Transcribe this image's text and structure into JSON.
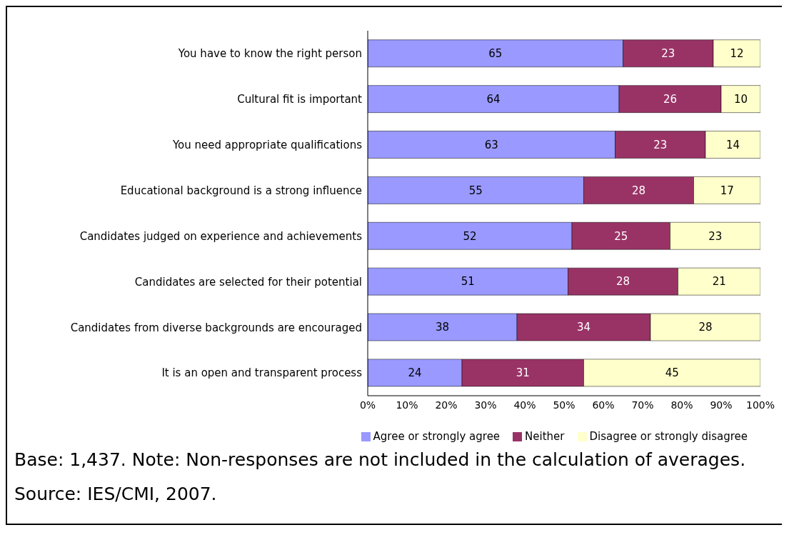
{
  "chart_data": {
    "type": "bar",
    "orientation": "horizontal",
    "stacked": true,
    "categories": [
      "You have to know the right person",
      "Cultural fit is important",
      "You need appropriate qualifications",
      "Educational background is a strong influence",
      "Candidates judged on experience and achievements",
      "Candidates are selected for their potential",
      "Candidates from diverse backgrounds are encouraged",
      "It is an open and transparent process"
    ],
    "series": [
      {
        "name": "Agree or strongly agree",
        "color": "#9999ff",
        "values": [
          65,
          64,
          63,
          55,
          52,
          51,
          38,
          24
        ]
      },
      {
        "name": "Neither",
        "color": "#993366",
        "values": [
          23,
          26,
          23,
          28,
          25,
          28,
          34,
          31
        ]
      },
      {
        "name": "Disagree or strongly disagree",
        "color": "#ffffcc",
        "values": [
          12,
          10,
          14,
          17,
          23,
          21,
          28,
          45
        ]
      }
    ],
    "xlim": [
      0,
      100
    ],
    "xticks": [
      {
        "value": 0,
        "label": "0%"
      },
      {
        "value": 10,
        "label": "10%"
      },
      {
        "value": 20,
        "label": "20%"
      },
      {
        "value": 30,
        "label": "30%"
      },
      {
        "value": 40,
        "label": "40%"
      },
      {
        "value": 50,
        "label": "50%"
      },
      {
        "value": 60,
        "label": "60%"
      },
      {
        "value": 70,
        "label": "70%"
      },
      {
        "value": 80,
        "label": "80%"
      },
      {
        "value": 90,
        "label": "90%"
      },
      {
        "value": 100,
        "label": "100%"
      }
    ],
    "data_labels": true,
    "legend": "bottom right",
    "annotations": [
      "Base: 1,437. Note: Non-responses are not included in the calculation of averages.",
      "Source: IES/CMI, 2007."
    ]
  }
}
